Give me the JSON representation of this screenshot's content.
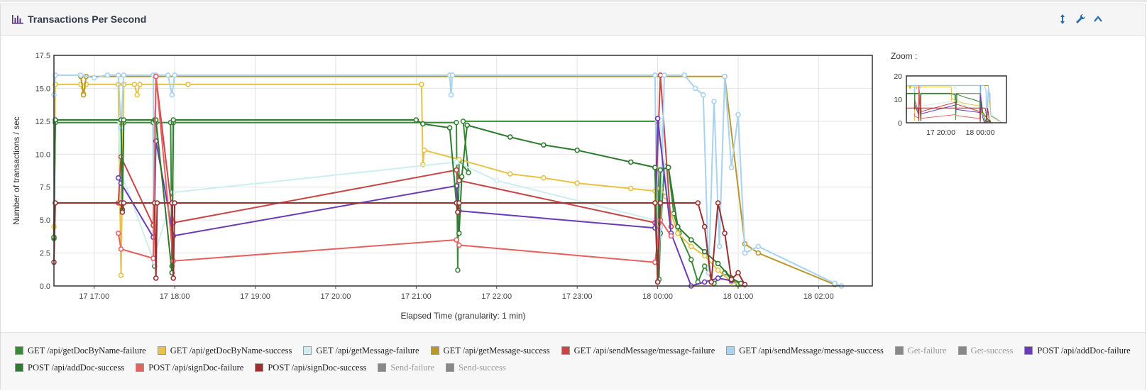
{
  "panel": {
    "title": "Transactions Per Second"
  },
  "icons": {
    "header": "bar-chart-icon",
    "buttons": [
      "resize-vertical-icon",
      "wrench-icon",
      "chevron-up-icon"
    ]
  },
  "zoom": {
    "label": "Zoom :",
    "y_ticks": [
      "20",
      "10",
      "0"
    ],
    "x_ticks": [
      "17 20:00",
      "18 00:00"
    ]
  },
  "chart_data": {
    "type": "line",
    "title": "",
    "xlabel": "Elapsed Time (granularity: 1 min)",
    "ylabel": "Number of transactions / sec",
    "ylim": [
      0,
      17.5
    ],
    "xlim": [
      "17 16:30",
      "18 02:40"
    ],
    "grid": true,
    "legend_position": "bottom",
    "y_ticks": [
      "0.0",
      "2.5",
      "5.0",
      "7.5",
      "10.0",
      "12.5",
      "15.0",
      "17.5"
    ],
    "x_ticks": [
      "17 17:00",
      "17 18:00",
      "17 19:00",
      "17 20:00",
      "17 21:00",
      "17 22:00",
      "17 23:00",
      "18 00:00",
      "18 01:00",
      "18 02:00"
    ],
    "x_tick_minutes": [
      30,
      90,
      150,
      210,
      270,
      330,
      390,
      450,
      510,
      570
    ],
    "series": [
      {
        "name": "GET /api/getDocByName-failure",
        "color": "#3a8a3a",
        "visible": true,
        "points": [
          [
            0,
            3.6
          ],
          [
            1,
            12.4
          ],
          [
            50,
            12.4
          ],
          [
            51,
            6.3
          ],
          [
            52,
            12.4
          ],
          [
            74,
            12.4
          ],
          [
            75,
            1.5
          ],
          [
            76,
            12.4
          ],
          [
            87,
            12.4
          ],
          [
            88,
            1.5
          ],
          [
            89,
            12.4
          ],
          [
            300,
            12.4
          ],
          [
            301,
            1.2
          ],
          [
            302,
            9.5
          ],
          [
            309,
            8.6
          ],
          [
            305,
            12.5
          ],
          [
            450,
            12.5
          ],
          [
            451,
            0.5
          ],
          [
            452,
            4.0
          ],
          [
            455,
            9.1
          ],
          [
            458,
            9.0
          ],
          [
            462,
            5.5
          ],
          [
            466,
            4.0
          ],
          [
            475,
            2.0
          ],
          [
            480,
            0.3
          ],
          [
            485,
            1.5
          ],
          [
            492,
            0.2
          ],
          [
            500,
            1.0
          ],
          [
            510,
            0.1
          ]
        ]
      },
      {
        "name": "GET /api/getDocByName-success",
        "color": "#e8c244",
        "visible": true,
        "points": [
          [
            0,
            4.5
          ],
          [
            1,
            15.3
          ],
          [
            20,
            15.3
          ],
          [
            22,
            14.6
          ],
          [
            24,
            15.3
          ],
          [
            48,
            15.3
          ],
          [
            50,
            0.8
          ],
          [
            52,
            15.3
          ],
          [
            60,
            15.3
          ],
          [
            62,
            14.5
          ],
          [
            64,
            15.3
          ],
          [
            100,
            15.3
          ],
          [
            274,
            15.3
          ],
          [
            275,
            9.2
          ],
          [
            276,
            10.3
          ],
          [
            302,
            9.6
          ],
          [
            340,
            8.5
          ],
          [
            365,
            8.2
          ],
          [
            390,
            7.8
          ],
          [
            430,
            7.4
          ],
          [
            448,
            7.2
          ],
          [
            450,
            0.3
          ],
          [
            452,
            7.4
          ],
          [
            456,
            6.8
          ],
          [
            465,
            4.0
          ],
          [
            475,
            3.0
          ],
          [
            485,
            2.3
          ],
          [
            495,
            1.2
          ],
          [
            505,
            0.3
          ],
          [
            512,
            0.1
          ]
        ]
      },
      {
        "name": "GET /api/getMessage-failure",
        "color": "#cdeeee",
        "visible": true,
        "points": [
          [
            48,
            12.6
          ],
          [
            50,
            8.6
          ],
          [
            74,
            2.0
          ],
          [
            89,
            7.1
          ],
          [
            300,
            9.4
          ],
          [
            330,
            8.0
          ],
          [
            448,
            5.0
          ],
          [
            452,
            12.6
          ],
          [
            460,
            4.0
          ]
        ]
      },
      {
        "name": "GET /api/getMessage-success",
        "color": "#b8982c",
        "visible": true,
        "points": [
          [
            20,
            15.9
          ],
          [
            22,
            14.5
          ],
          [
            24,
            15.9
          ],
          [
            500,
            15.9
          ],
          [
            515,
            3.2
          ],
          [
            525,
            2.5
          ],
          [
            582,
            0.1
          ],
          [
            587,
            0.0
          ]
        ]
      },
      {
        "name": "GET /api/sendMessage/message-failure",
        "color": "#c84646",
        "visible": true,
        "points": [
          [
            48,
            6.3
          ],
          [
            50,
            9.8
          ],
          [
            74,
            4.6
          ],
          [
            76,
            15.9
          ],
          [
            89,
            4.8
          ],
          [
            300,
            8.8
          ],
          [
            302,
            8.0
          ],
          [
            448,
            4.8
          ],
          [
            452,
            16.0
          ],
          [
            460,
            4.5
          ]
        ]
      },
      {
        "name": "GET /api/sendMessage/message-success",
        "color": "#a8d2ee",
        "visible": true,
        "points": [
          [
            0,
            14.5
          ],
          [
            1,
            16.0
          ],
          [
            20,
            16.0
          ],
          [
            30,
            15.8
          ],
          [
            40,
            16.0
          ],
          [
            48,
            16.0
          ],
          [
            50,
            12.0
          ],
          [
            52,
            16.0
          ],
          [
            74,
            16.0
          ],
          [
            75,
            1.8
          ],
          [
            76,
            16.0
          ],
          [
            85,
            16.0
          ],
          [
            88,
            14.5
          ],
          [
            90,
            16.0
          ],
          [
            295,
            16.0
          ],
          [
            296,
            14.5
          ],
          [
            297,
            16.0
          ],
          [
            448,
            16.0
          ],
          [
            450,
            0.3
          ],
          [
            452,
            4.5
          ],
          [
            455,
            16.0
          ],
          [
            470,
            16.0
          ],
          [
            478,
            15.0
          ],
          [
            484,
            14.5
          ],
          [
            488,
            1.0
          ],
          [
            492,
            14.0
          ],
          [
            496,
            3.0
          ],
          [
            500,
            15.9
          ],
          [
            505,
            9.0
          ],
          [
            510,
            13.0
          ],
          [
            515,
            2.5
          ],
          [
            525,
            3.0
          ],
          [
            582,
            0.2
          ],
          [
            587,
            0.0
          ]
        ]
      },
      {
        "name": "Get-failure",
        "color": "#888888",
        "visible": false,
        "points": []
      },
      {
        "name": "Get-success",
        "color": "#888888",
        "visible": false,
        "points": []
      },
      {
        "name": "POST /api/addDoc-failure",
        "color": "#6a3ab8",
        "visible": true,
        "points": [
          [
            48,
            8.2
          ],
          [
            50,
            7.8
          ],
          [
            74,
            3.7
          ],
          [
            76,
            11.0
          ],
          [
            89,
            3.8
          ],
          [
            300,
            7.6
          ],
          [
            302,
            5.7
          ],
          [
            448,
            4.4
          ],
          [
            450,
            12.7
          ],
          [
            460,
            4.0
          ],
          [
            475,
            0.0
          ],
          [
            485,
            0.3
          ],
          [
            495,
            0.6
          ],
          [
            505,
            0.4
          ]
        ]
      },
      {
        "name": "POST /api/addDoc-success",
        "color": "#2e7a2e",
        "visible": true,
        "points": [
          [
            0,
            3.7
          ],
          [
            1,
            12.6
          ],
          [
            50,
            12.6
          ],
          [
            51,
            5.8
          ],
          [
            52,
            12.6
          ],
          [
            75,
            12.6
          ],
          [
            76,
            12.6
          ],
          [
            88,
            1.0
          ],
          [
            89,
            12.6
          ],
          [
            270,
            12.6
          ],
          [
            275,
            12.3
          ],
          [
            295,
            12.0
          ],
          [
            302,
            4.0
          ],
          [
            304,
            8.3
          ],
          [
            308,
            12.2
          ],
          [
            340,
            11.3
          ],
          [
            365,
            10.7
          ],
          [
            390,
            10.3
          ],
          [
            430,
            9.4
          ],
          [
            448,
            9.0
          ],
          [
            450,
            0.3
          ],
          [
            452,
            8.8
          ],
          [
            458,
            9.0
          ],
          [
            465,
            4.5
          ],
          [
            475,
            3.5
          ],
          [
            485,
            2.6
          ],
          [
            495,
            1.7
          ],
          [
            505,
            0.6
          ],
          [
            512,
            0.2
          ]
        ]
      },
      {
        "name": "POST /api/signDoc-failure",
        "color": "#e66060",
        "visible": true,
        "points": [
          [
            48,
            4.0
          ],
          [
            50,
            2.8
          ],
          [
            74,
            2.1
          ],
          [
            76,
            15.9
          ],
          [
            89,
            1.9
          ],
          [
            300,
            3.5
          ],
          [
            302,
            3.1
          ],
          [
            448,
            1.8
          ],
          [
            452,
            5.0
          ],
          [
            460,
            3.8
          ]
        ]
      },
      {
        "name": "POST /api/signDoc-success",
        "color": "#9a3030",
        "visible": true,
        "points": [
          [
            0,
            1.8
          ],
          [
            1,
            6.3
          ],
          [
            50,
            6.3
          ],
          [
            51,
            5.6
          ],
          [
            52,
            6.3
          ],
          [
            75,
            6.3
          ],
          [
            76,
            0.6
          ],
          [
            77,
            6.3
          ],
          [
            88,
            6.3
          ],
          [
            89,
            0.6
          ],
          [
            90,
            6.3
          ],
          [
            300,
            6.3
          ],
          [
            301,
            5.6
          ],
          [
            302,
            6.3
          ],
          [
            448,
            6.3
          ],
          [
            450,
            0.3
          ],
          [
            452,
            6.3
          ],
          [
            480,
            6.3
          ],
          [
            485,
            4.5
          ],
          [
            490,
            0.3
          ],
          [
            495,
            6.3
          ],
          [
            500,
            4.0
          ],
          [
            505,
            0.5
          ],
          [
            510,
            1.0
          ],
          [
            515,
            0.1
          ]
        ]
      },
      {
        "name": "Send-failure",
        "color": "#888888",
        "visible": false,
        "points": []
      },
      {
        "name": "Send-success",
        "color": "#888888",
        "visible": false,
        "points": []
      }
    ]
  }
}
